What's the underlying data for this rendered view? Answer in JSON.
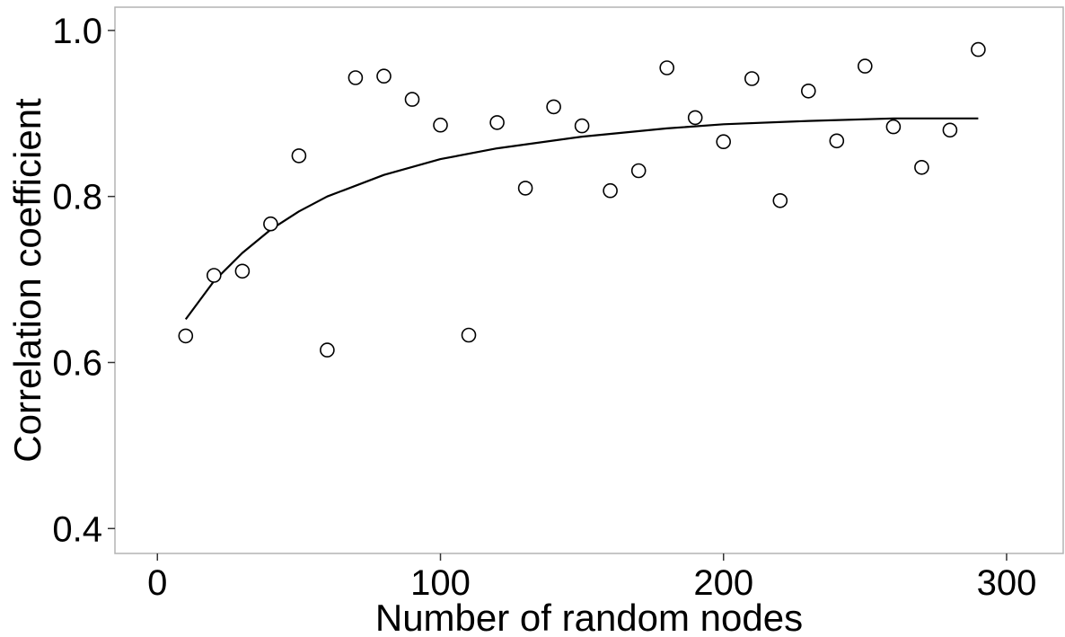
{
  "chart_data": {
    "type": "scatter",
    "title": "",
    "xlabel": "Number of random nodes",
    "ylabel": "Correlation coefficient",
    "xlim": [
      -15,
      320
    ],
    "ylim": [
      0.37,
      1.028
    ],
    "x_ticks": [
      0,
      100,
      200,
      300
    ],
    "x_tick_labels": [
      "0",
      "100",
      "200",
      "300"
    ],
    "y_ticks": [
      0.4,
      0.6,
      0.8,
      1.0
    ],
    "y_tick_labels": [
      "0.4",
      "0.6",
      "0.8",
      "1.0"
    ],
    "grid": false,
    "legend": "none",
    "series": [
      {
        "kind": "points",
        "marker": "open-circle",
        "x": [
          10,
          20,
          30,
          40,
          50,
          60,
          70,
          80,
          90,
          100,
          110,
          120,
          130,
          140,
          150,
          160,
          170,
          180,
          190,
          200,
          210,
          220,
          230,
          240,
          250,
          260,
          270,
          280,
          290
        ],
        "y": [
          0.632,
          0.705,
          0.71,
          0.767,
          0.849,
          0.615,
          0.943,
          0.945,
          0.917,
          0.886,
          0.633,
          0.889,
          0.81,
          0.908,
          0.885,
          0.807,
          0.831,
          0.955,
          0.895,
          0.866,
          0.942,
          0.795,
          0.927,
          0.867,
          0.957,
          0.884,
          0.835,
          0.88,
          0.977
        ]
      },
      {
        "kind": "fit-line",
        "x": [
          10,
          20,
          30,
          40,
          50,
          60,
          80,
          100,
          120,
          150,
          180,
          200,
          230,
          260,
          290
        ],
        "y": [
          0.652,
          0.698,
          0.732,
          0.76,
          0.782,
          0.8,
          0.826,
          0.845,
          0.858,
          0.872,
          0.882,
          0.887,
          0.891,
          0.894,
          0.894
        ]
      }
    ]
  }
}
